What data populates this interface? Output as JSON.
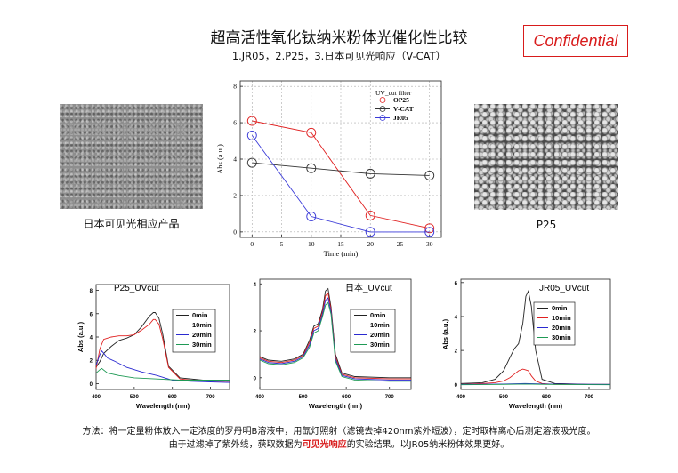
{
  "slide": {
    "title": "超高活性氧化钛纳米粉体光催化性比较",
    "subtitle": "1.JR05，2.P25，3.日本可见光响应（V-CAT）",
    "confidential": "Confidential",
    "left_caption": "日本可见光相应产品",
    "right_caption": "P25",
    "footer_line1": "方法：将一定量粉体放入一定浓度的罗丹明B溶液中，用氙灯照射（滤镜去掉420nm紫外短波），定时取样离心后测定溶液吸光度。",
    "footer_line2_pre": "由于过滤掉了紫外线，获取数据为",
    "footer_line2_hl": "可见光响应",
    "footer_line2_post": "的实验结果。以JR05纳米粉体效果更好。",
    "highlight_color": "#d81b1b"
  },
  "chart_data": [
    {
      "type": "line",
      "xlabel": "Time (min)",
      "ylabel": "Abs (a.u.)",
      "xlim": [
        -2,
        32
      ],
      "ylim": [
        -0.3,
        8.3
      ],
      "xticks": [
        0,
        5,
        10,
        15,
        20,
        25,
        30
      ],
      "yticks": [
        0,
        2,
        4,
        6,
        8
      ],
      "grid": true,
      "legend_title": "UV_cut filter",
      "legend_position": "top-right",
      "series": [
        {
          "name": "OP25",
          "color": "#e02020",
          "x": [
            0,
            10,
            20,
            30
          ],
          "y": [
            6.1,
            5.45,
            0.9,
            0.2
          ]
        },
        {
          "name": "V-CAT",
          "color": "#333333",
          "x": [
            0,
            10,
            20,
            30
          ],
          "y": [
            3.8,
            3.5,
            3.2,
            3.1
          ]
        },
        {
          "name": "JR05",
          "color": "#3a3ad8",
          "x": [
            0,
            10,
            20,
            30
          ],
          "y": [
            5.3,
            0.85,
            0.0,
            0.0
          ]
        }
      ]
    },
    {
      "type": "line",
      "title": "P25_UVcut",
      "xlabel": "Wavelength (nm)",
      "ylabel": "Abs (a.u.)",
      "xlim": [
        400,
        750
      ],
      "ylim": [
        -0.5,
        8.5
      ],
      "xticks": [
        400,
        500,
        600,
        700
      ],
      "yticks": [
        0,
        2,
        4,
        6,
        8
      ],
      "legend_position": "top-right",
      "series": [
        {
          "name": "0min",
          "color": "#222222",
          "x": [
            400,
            410,
            420,
            440,
            460,
            480,
            500,
            520,
            540,
            550,
            555,
            565,
            575,
            590,
            620,
            680,
            750
          ],
          "y": [
            1.4,
            1.9,
            2.6,
            3.2,
            3.7,
            3.9,
            4.2,
            4.9,
            5.8,
            6.1,
            6.1,
            5.6,
            4.2,
            1.5,
            0.5,
            0.3,
            0.25
          ]
        },
        {
          "name": "10min",
          "color": "#e02020",
          "x": [
            400,
            410,
            420,
            440,
            460,
            480,
            500,
            520,
            540,
            550,
            555,
            565,
            575,
            590,
            620,
            680,
            750
          ],
          "y": [
            1.3,
            3.0,
            3.8,
            4.0,
            4.1,
            4.1,
            4.2,
            4.6,
            5.1,
            5.5,
            5.5,
            5.1,
            3.8,
            1.4,
            0.4,
            0.2,
            0.2
          ]
        },
        {
          "name": "20min",
          "color": "#2a2ad0",
          "x": [
            400,
            410,
            415,
            430,
            450,
            480,
            520,
            560,
            580,
            600,
            650,
            700,
            750
          ],
          "y": [
            1.6,
            2.5,
            2.8,
            2.2,
            1.9,
            1.4,
            1.0,
            0.7,
            0.5,
            0.3,
            0.2,
            0.15,
            0.1
          ]
        },
        {
          "name": "30min",
          "color": "#1f9a55",
          "x": [
            400,
            410,
            415,
            430,
            460,
            500,
            560,
            620,
            700,
            750
          ],
          "y": [
            0.9,
            1.2,
            1.3,
            0.9,
            0.7,
            0.5,
            0.4,
            0.3,
            0.3,
            0.3
          ]
        }
      ]
    },
    {
      "type": "line",
      "title": "日本_UVcut",
      "xlabel": "Wavelength (nm)",
      "ylabel": "",
      "xlim": [
        400,
        750
      ],
      "ylim": [
        -0.5,
        4.2
      ],
      "xticks": [
        400,
        500,
        600,
        700
      ],
      "yticks": [
        0,
        2,
        4
      ],
      "legend_position": "top-right",
      "series": [
        {
          "name": "0min",
          "color": "#222222",
          "x": [
            400,
            420,
            450,
            480,
            500,
            515,
            525,
            535,
            545,
            552,
            558,
            565,
            575,
            590,
            620,
            700,
            750
          ],
          "y": [
            0.9,
            0.75,
            0.7,
            0.8,
            1.0,
            1.6,
            2.2,
            2.3,
            2.9,
            3.7,
            3.8,
            3.0,
            1.0,
            0.2,
            0.05,
            0.0,
            0.0
          ]
        },
        {
          "name": "10min",
          "color": "#e02020",
          "x": [
            400,
            420,
            450,
            480,
            500,
            515,
            525,
            535,
            545,
            552,
            558,
            565,
            575,
            590,
            620,
            700,
            750
          ],
          "y": [
            0.85,
            0.7,
            0.65,
            0.75,
            0.95,
            1.5,
            2.1,
            2.2,
            2.8,
            3.5,
            3.6,
            2.9,
            0.9,
            0.15,
            0.0,
            -0.05,
            -0.05
          ]
        },
        {
          "name": "20min",
          "color": "#2a2ad0",
          "x": [
            400,
            420,
            450,
            480,
            500,
            515,
            525,
            535,
            545,
            552,
            558,
            565,
            575,
            590,
            620,
            700,
            750
          ],
          "y": [
            0.8,
            0.65,
            0.6,
            0.7,
            0.9,
            1.4,
            2.0,
            2.1,
            2.7,
            3.3,
            3.4,
            2.8,
            0.8,
            0.1,
            -0.05,
            -0.1,
            -0.1
          ]
        },
        {
          "name": "30min",
          "color": "#1f9a55",
          "x": [
            400,
            420,
            450,
            480,
            500,
            515,
            525,
            535,
            545,
            552,
            558,
            565,
            575,
            590,
            620,
            700,
            750
          ],
          "y": [
            0.75,
            0.6,
            0.55,
            0.65,
            0.85,
            1.3,
            1.9,
            2.0,
            2.6,
            3.1,
            3.2,
            2.7,
            0.7,
            0.05,
            -0.1,
            -0.15,
            -0.15
          ]
        }
      ]
    },
    {
      "type": "line",
      "title": "JR05_UVcut",
      "xlabel": "Wavelength (nm)",
      "ylabel": "Abs (a.u.)",
      "xlim": [
        400,
        750
      ],
      "ylim": [
        -0.3,
        6.2
      ],
      "xticks": [
        400,
        500,
        600,
        700
      ],
      "yticks": [
        0,
        2,
        4,
        6
      ],
      "legend_position": "top-right",
      "series": [
        {
          "name": "0min",
          "color": "#222222",
          "x": [
            400,
            450,
            480,
            500,
            515,
            525,
            535,
            545,
            552,
            558,
            565,
            575,
            590,
            620,
            700,
            750
          ],
          "y": [
            0.05,
            0.1,
            0.3,
            0.8,
            1.6,
            2.1,
            2.4,
            3.6,
            5.2,
            5.5,
            4.6,
            2.0,
            0.3,
            0.05,
            0.0,
            0.0
          ]
        },
        {
          "name": "10min",
          "color": "#e02020",
          "x": [
            400,
            450,
            480,
            500,
            515,
            525,
            535,
            545,
            552,
            558,
            565,
            575,
            590,
            620,
            750
          ],
          "y": [
            0.0,
            0.05,
            0.1,
            0.2,
            0.4,
            0.6,
            0.8,
            0.9,
            0.85,
            0.8,
            0.5,
            0.2,
            0.05,
            0.0,
            0.0
          ]
        },
        {
          "name": "20min",
          "color": "#2a2ad0",
          "x": [
            400,
            500,
            550,
            600,
            750
          ],
          "y": [
            0.0,
            0.02,
            0.05,
            0.02,
            0.0
          ]
        },
        {
          "name": "30min",
          "color": "#1f9a55",
          "x": [
            400,
            500,
            550,
            600,
            750
          ],
          "y": [
            -0.02,
            0.0,
            0.02,
            0.0,
            -0.02
          ]
        }
      ]
    }
  ]
}
